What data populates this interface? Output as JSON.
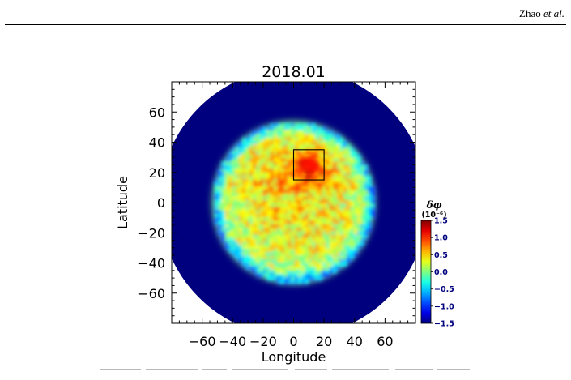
{
  "header": {
    "author": "Zhao",
    "etal": "et al."
  },
  "chart_data": {
    "type": "heatmap",
    "title": "2018.01",
    "xlabel": "Longitude",
    "ylabel": "Latitude",
    "xlim": [
      -80,
      80
    ],
    "ylim": [
      -80,
      80
    ],
    "xticks": [
      -60,
      -40,
      -20,
      0,
      20,
      40,
      60
    ],
    "yticks": [
      -60,
      -40,
      -20,
      0,
      20,
      40,
      60
    ],
    "disk_radius_deg": 88,
    "active_disk_radius_deg": 52,
    "box": {
      "lon": [
        0,
        20
      ],
      "lat": [
        15,
        35
      ]
    },
    "colorbar": {
      "label": "δφ",
      "unit": "(10⁻⁶)",
      "ticks": [
        1.5,
        1.0,
        0.5,
        0.0,
        -0.5,
        -1.0,
        -1.5
      ],
      "tick_labels": [
        "1.5",
        "1.0",
        "0.5",
        "0.0",
        "−0.5",
        "−1.0",
        "−1.5"
      ],
      "range": [
        -1.5,
        1.5
      ],
      "colormap": "jet"
    },
    "background_color": "#00007f"
  }
}
